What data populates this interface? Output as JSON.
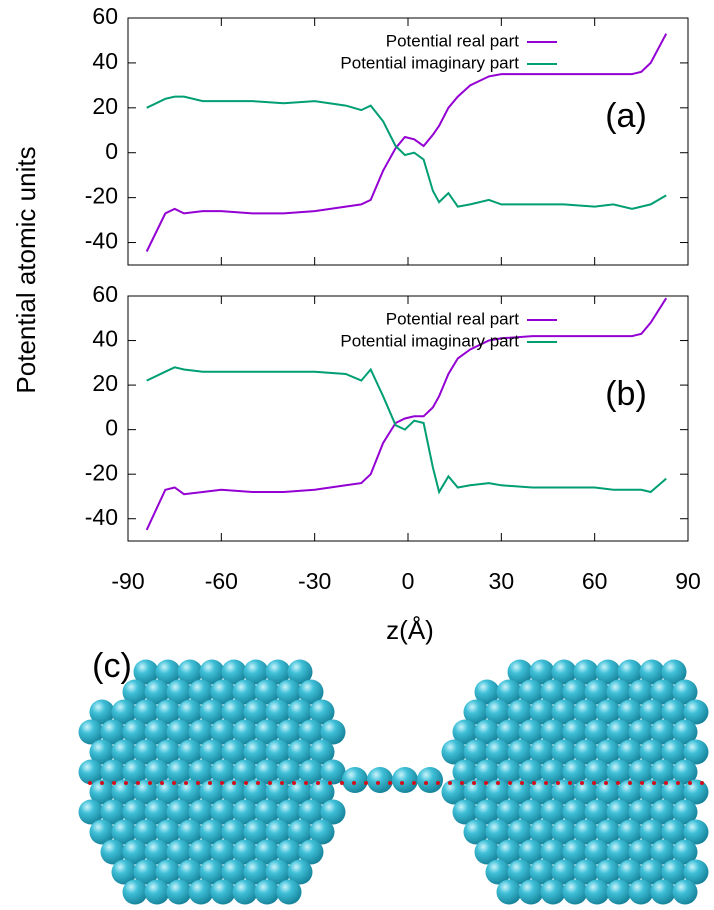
{
  "chart_data": [
    {
      "type": "line",
      "annotation": "(a)",
      "x": [
        -84,
        -78,
        -75,
        -72,
        -66,
        -60,
        -50,
        -40,
        -30,
        -20,
        -15,
        -12,
        -8,
        -4,
        -1,
        2,
        5,
        8,
        10,
        13,
        16,
        20,
        26,
        30,
        40,
        50,
        60,
        66,
        72,
        75,
        78,
        83
      ],
      "series": [
        {
          "name": "Potential real part",
          "color": "#9400d3",
          "values": [
            -44,
            -27,
            -25,
            -27,
            -26,
            -26,
            -27,
            -27,
            -26,
            -24,
            -23,
            -21,
            -8,
            2,
            7,
            6,
            3,
            8,
            12,
            20,
            25,
            30,
            34,
            35,
            35,
            35,
            35,
            35,
            35,
            36,
            40,
            53
          ]
        },
        {
          "name": "Potential imaginary part",
          "color": "#009e73",
          "values": [
            20,
            24,
            25,
            25,
            23,
            23,
            23,
            22,
            23,
            21,
            19,
            21,
            14,
            3,
            -1,
            0,
            -3,
            -17,
            -22,
            -18,
            -24,
            -23,
            -21,
            -23,
            -23,
            -23,
            -24,
            -23,
            -25,
            -24,
            -23,
            -19
          ]
        }
      ],
      "xlim": [
        -90,
        90
      ],
      "xticks": [
        -90,
        -60,
        -30,
        0,
        30,
        60,
        90
      ],
      "ylim": [
        -50,
        60
      ],
      "yticks": [
        -40,
        -20,
        0,
        20,
        40,
        60
      ],
      "grid": false,
      "legend": "top-right"
    },
    {
      "type": "line",
      "annotation": "(b)",
      "x": [
        -84,
        -78,
        -75,
        -72,
        -66,
        -60,
        -50,
        -40,
        -30,
        -20,
        -15,
        -12,
        -8,
        -4,
        -1,
        2,
        5,
        8,
        10,
        13,
        16,
        20,
        26,
        30,
        40,
        50,
        60,
        66,
        72,
        75,
        78,
        83
      ],
      "series": [
        {
          "name": "Potential real part",
          "color": "#9400d3",
          "values": [
            -45,
            -27,
            -26,
            -29,
            -28,
            -27,
            -28,
            -28,
            -27,
            -25,
            -24,
            -20,
            -6,
            3,
            5,
            6,
            6,
            10,
            15,
            25,
            32,
            36,
            40,
            41,
            42,
            42,
            42,
            42,
            42,
            43,
            48,
            59
          ]
        },
        {
          "name": "Potential imaginary part",
          "color": "#009e73",
          "values": [
            22,
            26,
            28,
            27,
            26,
            26,
            26,
            26,
            26,
            25,
            22,
            27,
            15,
            2,
            0,
            4,
            3,
            -17,
            -28,
            -21,
            -26,
            -25,
            -24,
            -25,
            -26,
            -26,
            -26,
            -27,
            -27,
            -27,
            -28,
            -22
          ]
        }
      ],
      "xlim": [
        -90,
        90
      ],
      "xticks": [
        -90,
        -60,
        -30,
        0,
        30,
        60,
        90
      ],
      "ylim": [
        -50,
        60
      ],
      "yticks": [
        -40,
        -20,
        0,
        20,
        40,
        60
      ],
      "grid": false,
      "legend": "top-right"
    }
  ],
  "axis_labels": {
    "y": "Potential atomic units",
    "x": "z(Å)"
  },
  "panel_c": {
    "label": "(c)"
  }
}
